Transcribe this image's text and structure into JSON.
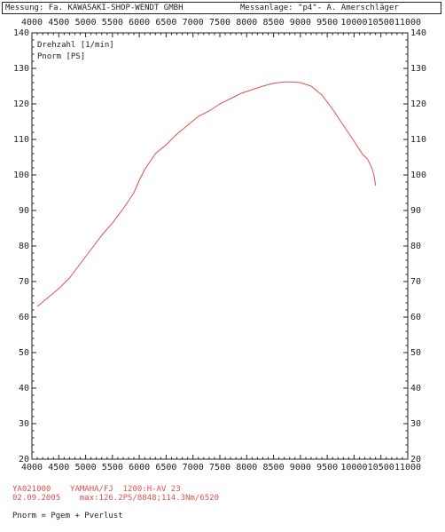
{
  "header": {
    "left": "Messung: Fa. KAWASAKI-SHOP-WENDT GMBH",
    "right": "Messanlage: \"p4\"- A. Amerschläger"
  },
  "chart_data": {
    "type": "line",
    "legend": [
      "Drehzahl [1/min]",
      "Pnorm [PS]"
    ],
    "xlim": [
      4000,
      11000
    ],
    "ylim": [
      20,
      140
    ],
    "x_ticks": [
      4000,
      4500,
      5000,
      5500,
      6000,
      6500,
      7000,
      7500,
      8000,
      8500,
      9000,
      9500,
      10000,
      10500,
      11000
    ],
    "y_ticks": [
      20,
      30,
      40,
      50,
      60,
      70,
      80,
      90,
      100,
      110,
      120,
      130,
      140
    ],
    "grid": false,
    "line_color": "#e05050",
    "series": [
      {
        "x": [
          4100,
          4300,
          4500,
          4700,
          4900,
          5100,
          5300,
          5500,
          5700,
          5900,
          6000,
          6100,
          6300,
          6500,
          6700,
          6900,
          7100,
          7300,
          7500,
          7700,
          7900,
          8100,
          8300,
          8500,
          8700,
          8850,
          9000,
          9200,
          9400,
          9600,
          9800,
          10000,
          10150,
          10250,
          10330,
          10370,
          10400
        ],
        "y": [
          63,
          65.5,
          68,
          71,
          75,
          79,
          83,
          86.5,
          90.5,
          95,
          98.5,
          101.5,
          106,
          108.5,
          111.5,
          114,
          116.5,
          118,
          120,
          121.5,
          123,
          124,
          125,
          125.8,
          126.2,
          126.2,
          126,
          125,
          122.5,
          118.5,
          114,
          109.5,
          106,
          104.5,
          102,
          100,
          97
        ]
      }
    ]
  },
  "footer": {
    "line1": "YA021000    YAMAHA/FJ  1200:H-AV 23",
    "line2": "02.09.2005    max:126.2PS/8848;114.3Nm/6520",
    "line3": "Pnorm = Pgem + Pverlust"
  }
}
